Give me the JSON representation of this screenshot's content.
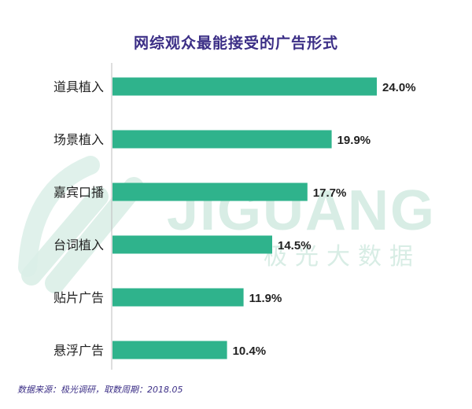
{
  "chart_data": {
    "type": "bar",
    "orientation": "horizontal",
    "title": "网综观众最能接受的广告形式",
    "categories": [
      "道具植入",
      "场景植入",
      "嘉宾口播",
      "台词植入",
      "贴片广告",
      "悬浮广告"
    ],
    "values": [
      24.0,
      19.9,
      17.7,
      14.5,
      11.9,
      10.4
    ],
    "value_labels": [
      "24.0%",
      "19.9%",
      "17.7%",
      "14.5%",
      "11.9%",
      "10.4%"
    ],
    "xlim": [
      0,
      24.0
    ],
    "grid": false,
    "bar_color": "#2fb38c",
    "source": "数据来源：极光调研，取数周期：2018.05"
  },
  "watermark": {
    "brand_text": "JIGUANG",
    "brand_subtext": "极光大数据",
    "logo_icon": "jiguang-logo-icon",
    "color": "#d3ece2"
  },
  "colors": {
    "title": "#3b2e86",
    "label": "#222222",
    "axis": "#bdbdbd"
  }
}
